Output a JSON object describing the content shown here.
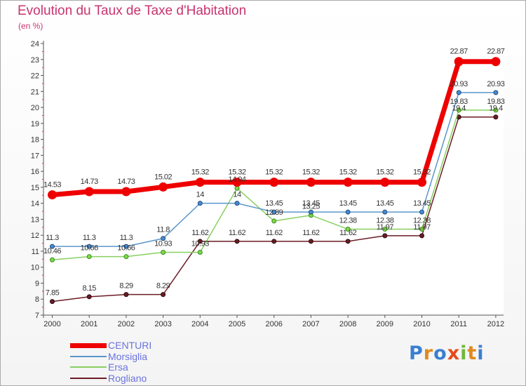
{
  "title": "Evolution du Taux de Taxe d'Habitation",
  "subtitle": "(en %)",
  "logo_text": "Proxiti",
  "chart_data": {
    "type": "line",
    "title": "Evolution du Taux de Taxe d'Habitation",
    "subtitle": "(en %)",
    "categories": [
      "2000",
      "2001",
      "2002",
      "2003",
      "2004",
      "2005",
      "2006",
      "2007",
      "2008",
      "2009",
      "2010",
      "2011",
      "2012"
    ],
    "ylim": [
      7,
      24
    ],
    "yticks": [
      "7",
      "8",
      "9",
      "10",
      "11",
      "12",
      "13",
      "14",
      "15",
      "16",
      "17",
      "18",
      "19",
      "20",
      "21",
      "22",
      "23",
      "24"
    ],
    "grid": false,
    "legend_position": "bottom-left",
    "series": [
      {
        "name": "CENTURI",
        "color": "#ee0000",
        "values": [
          14.53,
          14.73,
          14.73,
          15.02,
          15.32,
          15.32,
          15.32,
          15.32,
          15.32,
          15.32,
          15.32,
          22.87,
          22.87
        ],
        "labels": [
          "14.53",
          "14.73",
          "14.73",
          "15.02",
          "15.32",
          "15.32",
          "15.32",
          "15.32",
          "15.32",
          "15.32",
          "15.32",
          "22.87",
          "22.87"
        ]
      },
      {
        "name": "Morsiglia",
        "color": "#5b96cc",
        "values": [
          11.3,
          11.3,
          11.3,
          11.8,
          14,
          14,
          13.45,
          13.45,
          13.45,
          13.45,
          13.45,
          20.93,
          20.93
        ],
        "labels": [
          "11.3",
          "11.3",
          "11.3",
          "11.8",
          "14",
          "14",
          "13.45",
          "13.45",
          "13.45",
          "13.45",
          "13.45",
          "20.93",
          "20.93"
        ]
      },
      {
        "name": "Ersa",
        "color": "#88d060",
        "values": [
          10.46,
          10.66,
          10.66,
          10.93,
          10.93,
          14.94,
          12.89,
          13.25,
          12.38,
          12.38,
          12.38,
          19.83,
          19.83
        ],
        "labels": [
          "10.46",
          "10.66",
          "10.66",
          "10.93",
          "10.93",
          "14.94",
          "12.89",
          "13.25",
          "12.38",
          "12.38",
          "12.38",
          "19.83",
          "19.83"
        ]
      },
      {
        "name": "Rogliano",
        "color": "#6b1c24",
        "values": [
          7.85,
          8.15,
          8.29,
          8.29,
          11.62,
          11.62,
          11.62,
          11.62,
          11.62,
          11.97,
          11.97,
          19.4,
          19.4
        ],
        "labels": [
          "7.85",
          "8.15",
          "8.29",
          "8.29",
          "11.62",
          "11.62",
          "11.62",
          "11.62",
          "11.62",
          "11.97",
          "11.97",
          "19.4",
          "19.4"
        ]
      }
    ]
  }
}
